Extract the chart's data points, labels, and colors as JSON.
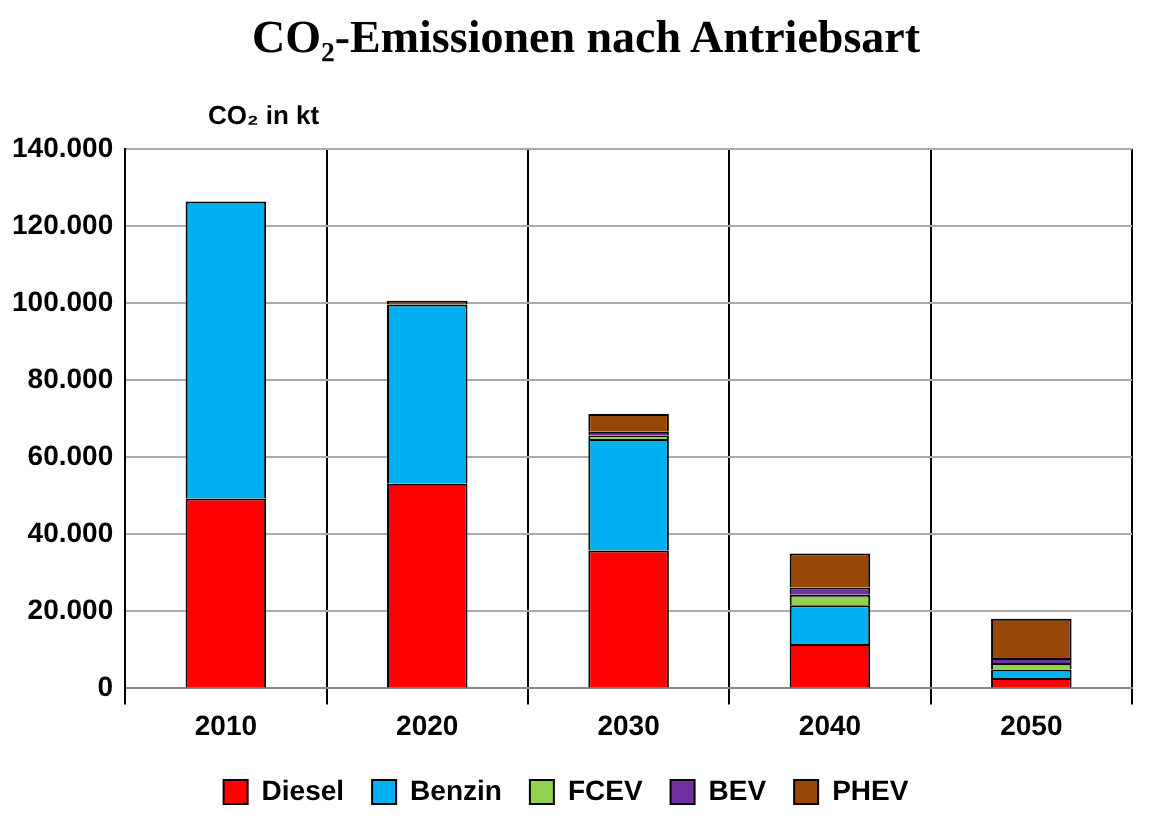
{
  "chart_data": {
    "type": "bar",
    "title": "CO₂-Emissionen nach Antriebsart",
    "ylabel": "CO₂ in kt",
    "stacked": true,
    "categories": [
      "2010",
      "2020",
      "2030",
      "2040",
      "2050"
    ],
    "series": [
      {
        "name": "Diesel",
        "color": "#ff0000",
        "values": [
          49300,
          53100,
          35800,
          11500,
          2700
        ]
      },
      {
        "name": "Benzin",
        "color": "#00b0f0",
        "values": [
          77000,
          46500,
          28900,
          10100,
          2200
        ]
      },
      {
        "name": "FCEV",
        "color": "#92d050",
        "values": [
          0,
          0,
          900,
          2700,
          1700
        ]
      },
      {
        "name": "BEV",
        "color": "#7030a0",
        "values": [
          0,
          0,
          1000,
          1900,
          1300
        ]
      },
      {
        "name": "PHEV",
        "color": "#974706",
        "values": [
          0,
          1000,
          4600,
          8800,
          10200
        ]
      }
    ],
    "ylim": [
      0,
      140000
    ],
    "yticks": [
      {
        "value": 0,
        "label": "0"
      },
      {
        "value": 20000,
        "label": "20.000"
      },
      {
        "value": 40000,
        "label": "40.000"
      },
      {
        "value": 60000,
        "label": "60.000"
      },
      {
        "value": 80000,
        "label": "80.000"
      },
      {
        "value": 100000,
        "label": "100.000"
      },
      {
        "value": 120000,
        "label": "120.000"
      },
      {
        "value": 140000,
        "label": "140.000"
      }
    ],
    "grid": true,
    "legend": "bottom"
  }
}
